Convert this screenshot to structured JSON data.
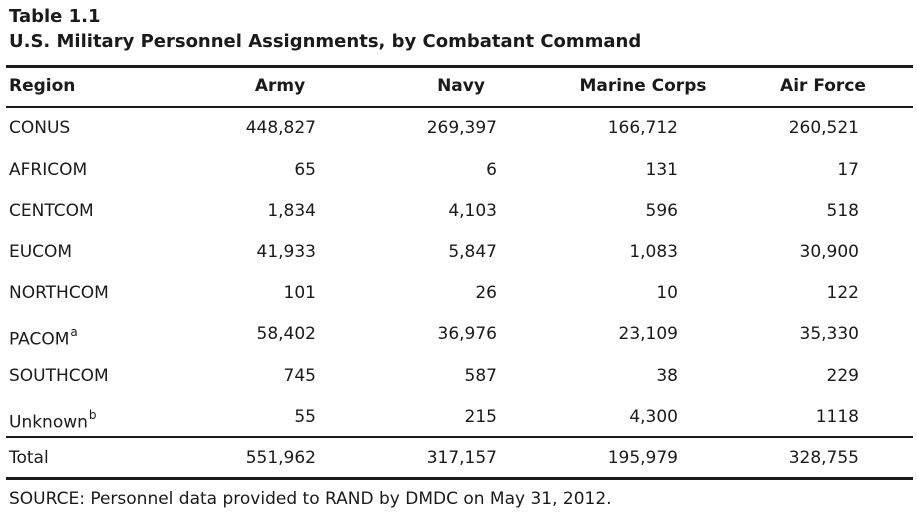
{
  "table": {
    "label": "Table 1.1",
    "title": "U.S. Military Personnel Assignments, by Combatant Command",
    "columns": [
      "Region",
      "Army",
      "Navy",
      "Marine Corps",
      "Air Force"
    ],
    "rows": [
      {
        "region": "CONUS",
        "note": "",
        "army": "448,827",
        "navy": "269,397",
        "marine_corps": "166,712",
        "air_force": "260,521"
      },
      {
        "region": "AFRICOM",
        "note": "",
        "army": "65",
        "navy": "6",
        "marine_corps": "131",
        "air_force": "17"
      },
      {
        "region": "CENTCOM",
        "note": "",
        "army": "1,834",
        "navy": "4,103",
        "marine_corps": "596",
        "air_force": "518"
      },
      {
        "region": "EUCOM",
        "note": "",
        "army": "41,933",
        "navy": "5,847",
        "marine_corps": "1,083",
        "air_force": "30,900"
      },
      {
        "region": "NORTHCOM",
        "note": "",
        "army": "101",
        "navy": "26",
        "marine_corps": "10",
        "air_force": "122"
      },
      {
        "region": "PACOM",
        "note": "a",
        "army": "58,402",
        "navy": "36,976",
        "marine_corps": "23,109",
        "air_force": "35,330"
      },
      {
        "region": "SOUTHCOM",
        "note": "",
        "army": "745",
        "navy": "587",
        "marine_corps": "38",
        "air_force": "229"
      },
      {
        "region": "Unknown",
        "note": "b",
        "army": "55",
        "navy": "215",
        "marine_corps": "4,300",
        "air_force": "1118"
      }
    ],
    "total": {
      "region": "Total",
      "army": "551,962",
      "navy": "317,157",
      "marine_corps": "195,979",
      "air_force": "328,755"
    },
    "source": "SOURCE: Personnel data provided to RAND by DMDC on May 31, 2012."
  }
}
